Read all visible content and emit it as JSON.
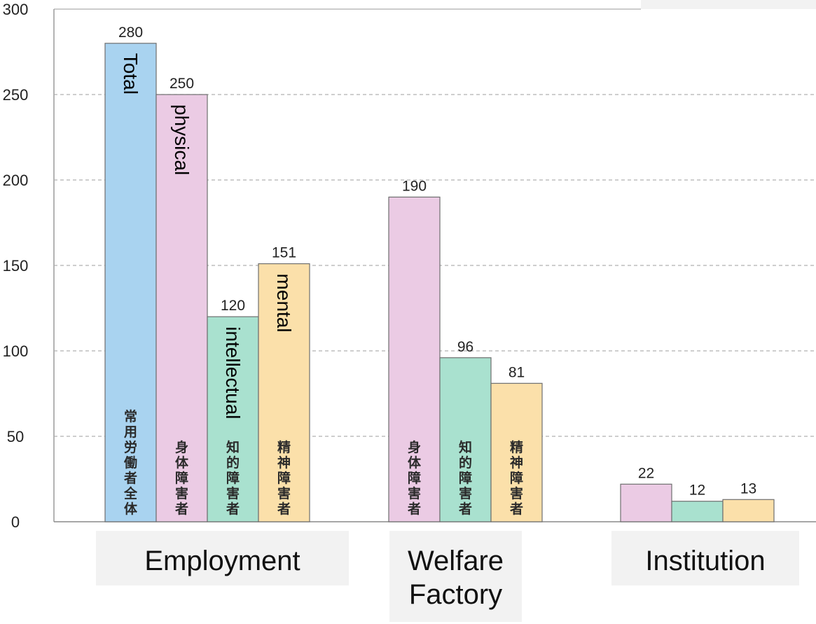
{
  "chart_data": {
    "type": "bar",
    "ylim": [
      0,
      300
    ],
    "yticks": [
      0,
      50,
      100,
      150,
      200,
      250,
      300
    ],
    "grid": "horizontal dashed",
    "colors": {
      "total": "#a9d3f0",
      "physical": "#ebcbe4",
      "intellectual": "#a9e1cf",
      "mental": "#fbe0aa"
    },
    "groups": [
      {
        "label": "Employment",
        "bars": [
          {
            "series": "total",
            "value": 280,
            "value_label": "280",
            "name_label": "Total",
            "jp_label": "常用労働者全体"
          },
          {
            "series": "physical",
            "value": 250,
            "value_label": "250",
            "name_label": "physical",
            "jp_label": "身体障害者"
          },
          {
            "series": "intellectual",
            "value": 120,
            "value_label": "120",
            "name_label": "intellectual",
            "jp_label": "知的障害者"
          },
          {
            "series": "mental",
            "value": 151,
            "value_label": "151",
            "name_label": "mental",
            "jp_label": "精神障害者"
          }
        ]
      },
      {
        "label": "Welfare Factory",
        "bars": [
          {
            "series": "physical",
            "value": 190,
            "value_label": "190",
            "name_label": "",
            "jp_label": "身体障害者"
          },
          {
            "series": "intellectual",
            "value": 96,
            "value_label": "96",
            "name_label": "",
            "jp_label": "知的障害者"
          },
          {
            "series": "mental",
            "value": 81,
            "value_label": "81",
            "name_label": "",
            "jp_label": "精神障害者"
          }
        ]
      },
      {
        "label": "Institution",
        "bars": [
          {
            "series": "physical",
            "value": 22,
            "value_label": "22",
            "name_label": "",
            "jp_label": ""
          },
          {
            "series": "intellectual",
            "value": 12,
            "value_label": "12",
            "name_label": "",
            "jp_label": ""
          },
          {
            "series": "mental",
            "value": 13,
            "value_label": "13",
            "name_label": "",
            "jp_label": ""
          }
        ]
      }
    ]
  }
}
